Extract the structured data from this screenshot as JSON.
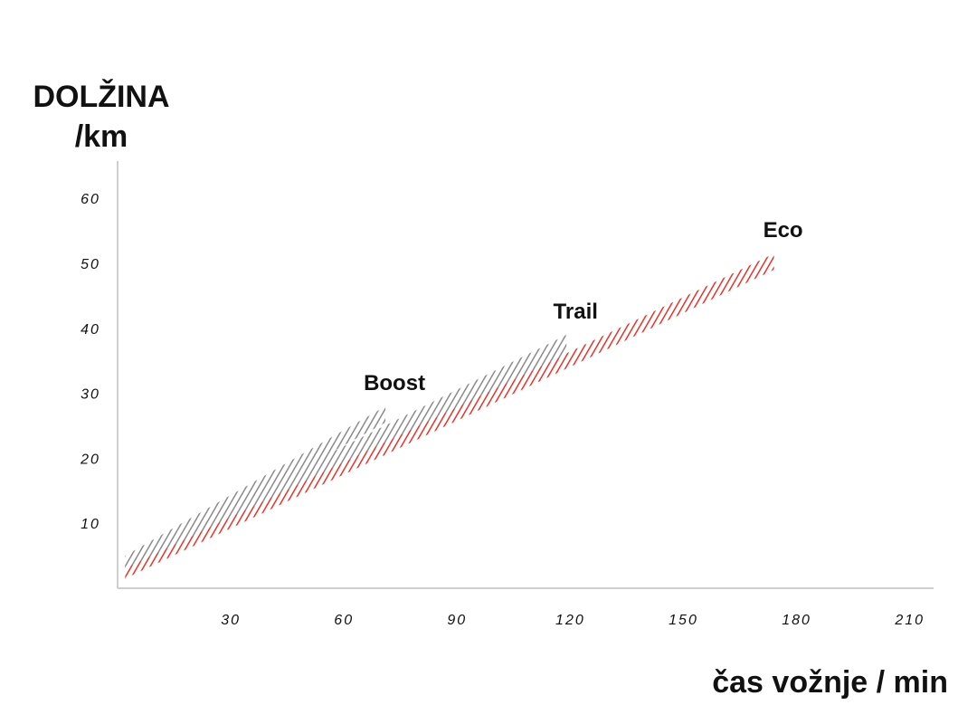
{
  "chart_data": {
    "type": "area",
    "ylabel_lines": [
      "DOLŽINA",
      "/km"
    ],
    "xlabel": "čas vožnje / min",
    "x_ticks": [
      "30",
      "60",
      "90",
      "120",
      "150",
      "180",
      "210"
    ],
    "y_ticks": [
      "10",
      "20",
      "30",
      "40",
      "50",
      "60"
    ],
    "xlim": [
      0,
      215
    ],
    "ylim": [
      0,
      65
    ],
    "grid": false,
    "series": [
      {
        "name": "Eco",
        "color": "#e8322a",
        "band": {
          "x_start": 2,
          "x_end": 174,
          "y_low_start": 1.5,
          "y_low_end": 49,
          "y_high_start": 3.5,
          "y_high_end": 51.5
        }
      },
      {
        "name": "Trail",
        "color": "#8a8a8a",
        "band": {
          "x_start": 2,
          "x_end": 119,
          "y_low_start": 3,
          "y_low_end": 36,
          "y_high_start": 5,
          "y_high_end": 39
        }
      },
      {
        "name": "Boost",
        "color": "#8a8a8a",
        "band": {
          "x_start": 2,
          "x_end": 71,
          "y_low_start": 3.5,
          "y_low_end": 25.5,
          "y_high_start": 5,
          "y_high_end": 28
        }
      }
    ]
  }
}
